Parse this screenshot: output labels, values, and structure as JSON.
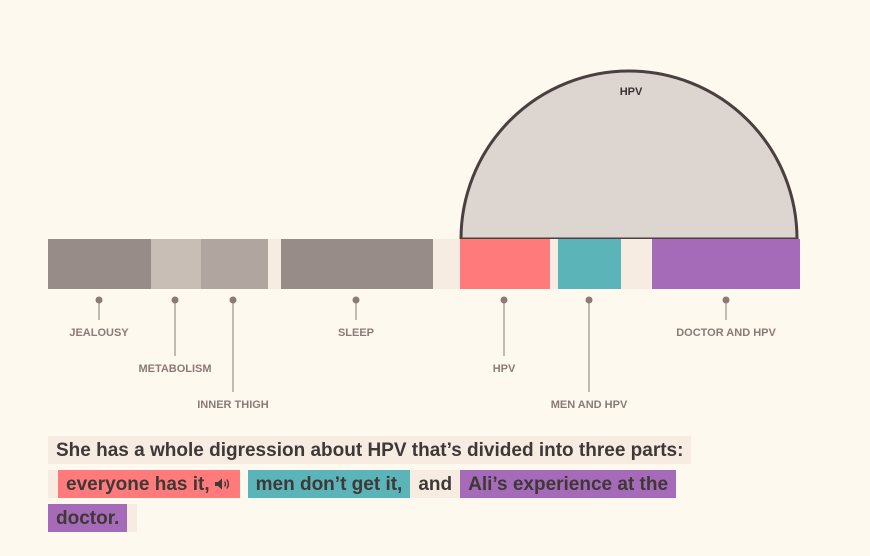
{
  "timeline": {
    "segments": [
      {
        "id": "jealousy",
        "color": "#978c87"
      },
      {
        "id": "metabolism",
        "color": "#c8beb5"
      },
      {
        "id": "inner-thigh",
        "color": "#b0a69f"
      },
      {
        "id": "gap1",
        "color": "#f6ece2"
      },
      {
        "id": "sleep",
        "color": "#978c87"
      },
      {
        "id": "gap2",
        "color": "#f6ece2"
      },
      {
        "id": "hpv",
        "color": "#ff7b7b"
      },
      {
        "id": "gap3",
        "color": "#f6ece2"
      },
      {
        "id": "men-and-hpv",
        "color": "#5bb5b8"
      },
      {
        "id": "gap4",
        "color": "#f6ece2"
      },
      {
        "id": "doctor-and-hpv",
        "color": "#a56bb8"
      }
    ],
    "labels": [
      {
        "id": "jealousy",
        "text": "JEALOUSY"
      },
      {
        "id": "metabolism",
        "text": "METABOLISM"
      },
      {
        "id": "inner-thigh",
        "text": "INNER THIGH"
      },
      {
        "id": "sleep",
        "text": "SLEEP"
      },
      {
        "id": "hpv",
        "text": "HPV"
      },
      {
        "id": "men-and-hpv",
        "text": "MEN AND HPV"
      },
      {
        "id": "doctor-and-hpv",
        "text": "DOCTOR AND HPV"
      }
    ],
    "dome": {
      "label": "HPV",
      "fill": "#dcd5d0",
      "stroke": "#4a4040"
    }
  },
  "caption": {
    "intro": "She has a whole digression about HPV that’s divided into three parts:",
    "part1": "everyone has it,",
    "part1_icon": "speaker-icon",
    "part2": "men don’t get it,",
    "connector": "and",
    "part3_line1": "Ali’s experience at the",
    "part3_line2": "doctor.",
    "colors": {
      "part1": "#ff7b7b",
      "part2": "#5bb5b8",
      "part3": "#a56bb8",
      "base": "#f6ece2",
      "text": "#3e3837"
    }
  }
}
